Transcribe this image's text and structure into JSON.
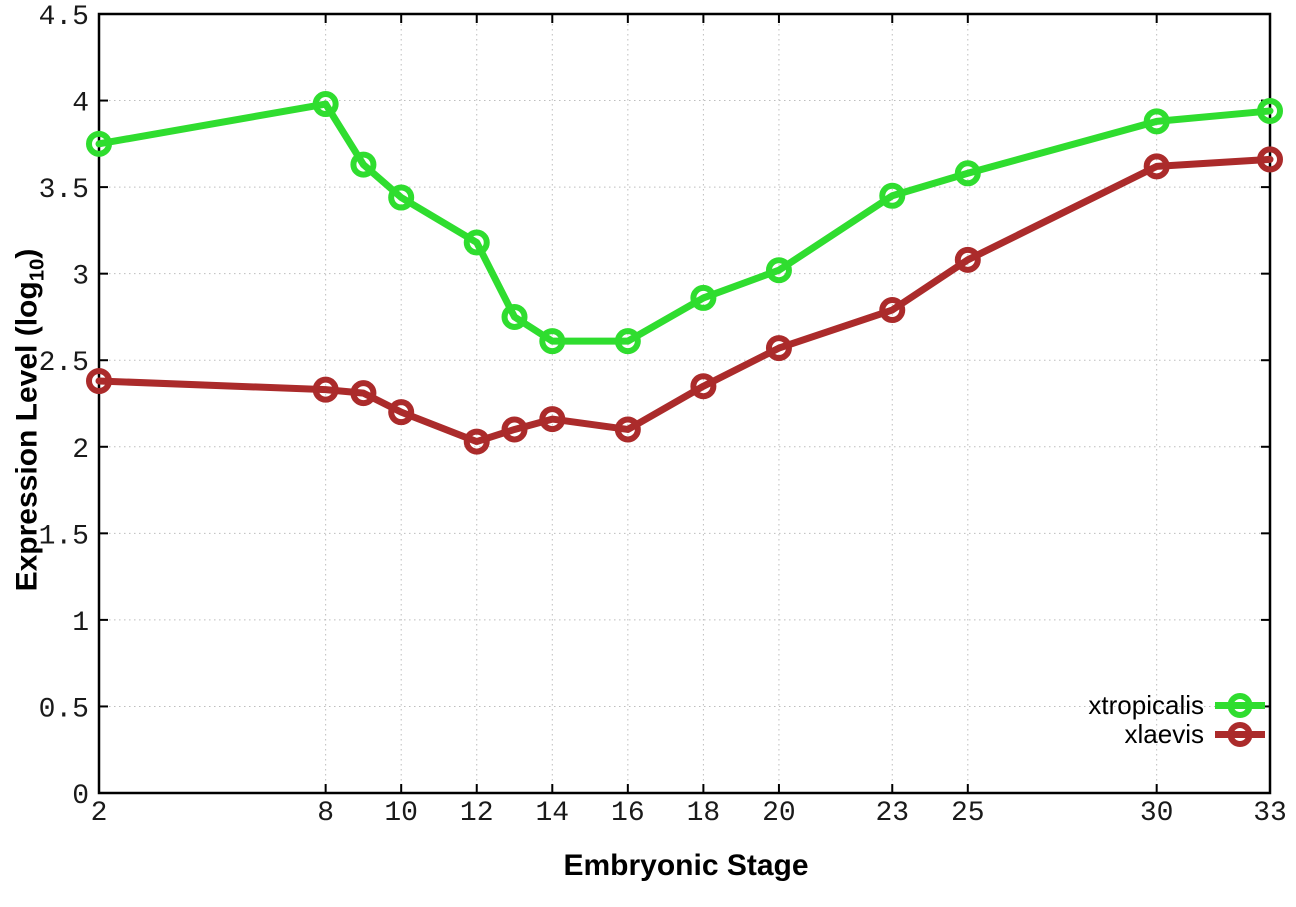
{
  "chart_data": {
    "type": "line",
    "title": "",
    "xlabel": "Embryonic Stage",
    "ylabel": "Expression Level (log10)",
    "ylabel_parts": {
      "main": "Expression Level (log",
      "sub": "10",
      "close": ")"
    },
    "x": [
      2,
      8,
      9,
      10,
      12,
      13,
      14,
      16,
      18,
      20,
      23,
      25,
      30,
      33
    ],
    "x_ticks": [
      2,
      8,
      10,
      12,
      14,
      16,
      18,
      20,
      23,
      25,
      30,
      33
    ],
    "y_ticks": [
      0,
      0.5,
      1,
      1.5,
      2,
      2.5,
      3,
      3.5,
      4,
      4.5
    ],
    "xlim": [
      2,
      33
    ],
    "ylim": [
      0,
      4.5
    ],
    "grid": true,
    "legend_position": "bottom-right",
    "series": [
      {
        "name": "xtropicalis",
        "color": "#2fdd2f",
        "values": [
          3.75,
          3.98,
          3.63,
          3.44,
          3.18,
          2.75,
          2.61,
          2.61,
          2.86,
          3.02,
          3.45,
          3.58,
          3.88,
          3.94
        ]
      },
      {
        "name": "xlaevis",
        "color": "#ab2b2b",
        "values": [
          2.38,
          2.33,
          2.31,
          2.2,
          2.03,
          2.1,
          2.16,
          2.1,
          2.35,
          2.57,
          2.79,
          3.08,
          3.62,
          3.66
        ]
      }
    ]
  },
  "style_colors": {
    "grid": "#bdbdbd",
    "border": "#000000",
    "tick_text": "#1a1a1a"
  }
}
